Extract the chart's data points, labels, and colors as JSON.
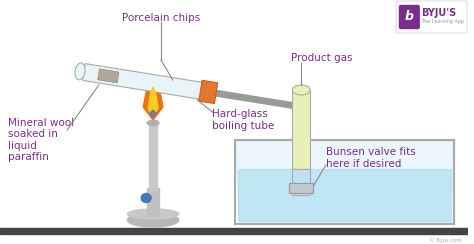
{
  "bg_color": "#ffffff",
  "byju_color": "#7b2d8b",
  "copyright": "© Byju.com",
  "label_color": "#7b2d8b",
  "label_fs": 7.5,
  "labels": {
    "porcelain_chips": "Porcelain chips",
    "hard_glass": "Hard-glass\nboiling tube",
    "mineral_wool": "Mineral wool\nsoaked in\nliquid\nparaffin",
    "product_gas": "Product gas",
    "bunsen_valve": "Bunsen valve fits\nhere if desired"
  },
  "floor_color": "#444444",
  "bunsen_base_color": "#b0b0b0",
  "bunsen_stem_color": "#c8c8c8",
  "bunsen_tube_color": "#d0d0d0",
  "bunsen_knob_color": "#4477bb",
  "flame_outer": "#f07010",
  "flame_inner": "#f8cc20",
  "flame_blue": "#4466dd",
  "boiling_tube_fill": "#e8f4f8",
  "boiling_tube_outline": "#aaaaaa",
  "orange_cap_color": "#e07830",
  "mineral_wool_color": "#999999",
  "pipe_color": "#999999",
  "pipe_lw": 5,
  "beaker_outline": "#aaaaaa",
  "beaker_water": "#aadcf0",
  "beaker_light": "#d8f0fa",
  "product_tube_fill": "#e8efb8",
  "product_tube_outline": "#aaaaaa",
  "product_tube_water": "#c0dff0",
  "annotation_line_color": "#888888"
}
